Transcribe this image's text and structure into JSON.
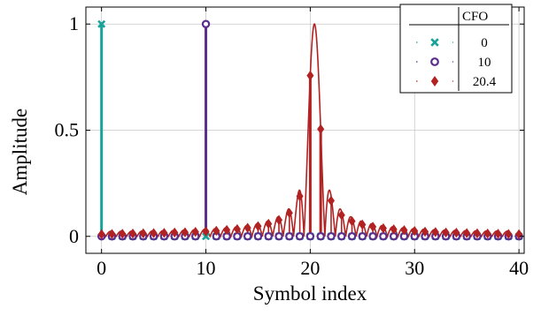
{
  "chart_data": {
    "type": "stem",
    "title": "",
    "xlabel": "Symbol index",
    "ylabel": "Amplitude",
    "xlim": [
      -1.5,
      40.5
    ],
    "ylim": [
      -0.08,
      1.08
    ],
    "xticks": [
      0,
      10,
      20,
      30,
      40
    ],
    "yticks": [
      0,
      0.5,
      1
    ],
    "ytick_labels": [
      "0",
      "0.5",
      "1"
    ],
    "grid": true,
    "legend": {
      "title": "CFO",
      "placement": "top-right"
    },
    "x": [
      0,
      1,
      2,
      3,
      4,
      5,
      6,
      7,
      8,
      9,
      10,
      11,
      12,
      13,
      14,
      15,
      16,
      17,
      18,
      19,
      20,
      21,
      22,
      23,
      24,
      25,
      26,
      27,
      28,
      29,
      30,
      31,
      32,
      33,
      34,
      35,
      36,
      37,
      38,
      39,
      40
    ],
    "series": [
      {
        "name": "0",
        "color": "#17a398",
        "marker": "x",
        "values": [
          1,
          0,
          0,
          0,
          0,
          0,
          0,
          0,
          0,
          0,
          0,
          0,
          0,
          0,
          0,
          0,
          0,
          0,
          0,
          0,
          0,
          0,
          0,
          0,
          0,
          0,
          0,
          0,
          0,
          0,
          0,
          0,
          0,
          0,
          0,
          0,
          0,
          0,
          0,
          0,
          0
        ]
      },
      {
        "name": "10",
        "color": "#5b2d8e",
        "marker": "circle",
        "values": [
          0,
          0,
          0,
          0,
          0,
          0,
          0,
          0,
          0,
          0,
          1,
          0,
          0,
          0,
          0,
          0,
          0,
          0,
          0,
          0,
          0,
          0,
          0,
          0,
          0,
          0,
          0,
          0,
          0,
          0,
          0,
          0,
          0,
          0,
          0,
          0,
          0,
          0,
          0,
          0,
          0
        ]
      },
      {
        "name": "20.4",
        "color": "#b22222",
        "marker": "diamond",
        "values": [
          0.01,
          0.011,
          0.012,
          0.013,
          0.014,
          0.015,
          0.016,
          0.018,
          0.019,
          0.021,
          0.023,
          0.026,
          0.03,
          0.034,
          0.04,
          0.048,
          0.059,
          0.077,
          0.11,
          0.189,
          0.757,
          0.505,
          0.168,
          0.1,
          0.071,
          0.055,
          0.045,
          0.038,
          0.033,
          0.029,
          0.025,
          0.022,
          0.02,
          0.018,
          0.017,
          0.015,
          0.014,
          0.013,
          0.012,
          0.011,
          0.01
        ]
      }
    ],
    "continuous_curve": {
      "series": "20.4",
      "center": 20.4
    }
  }
}
